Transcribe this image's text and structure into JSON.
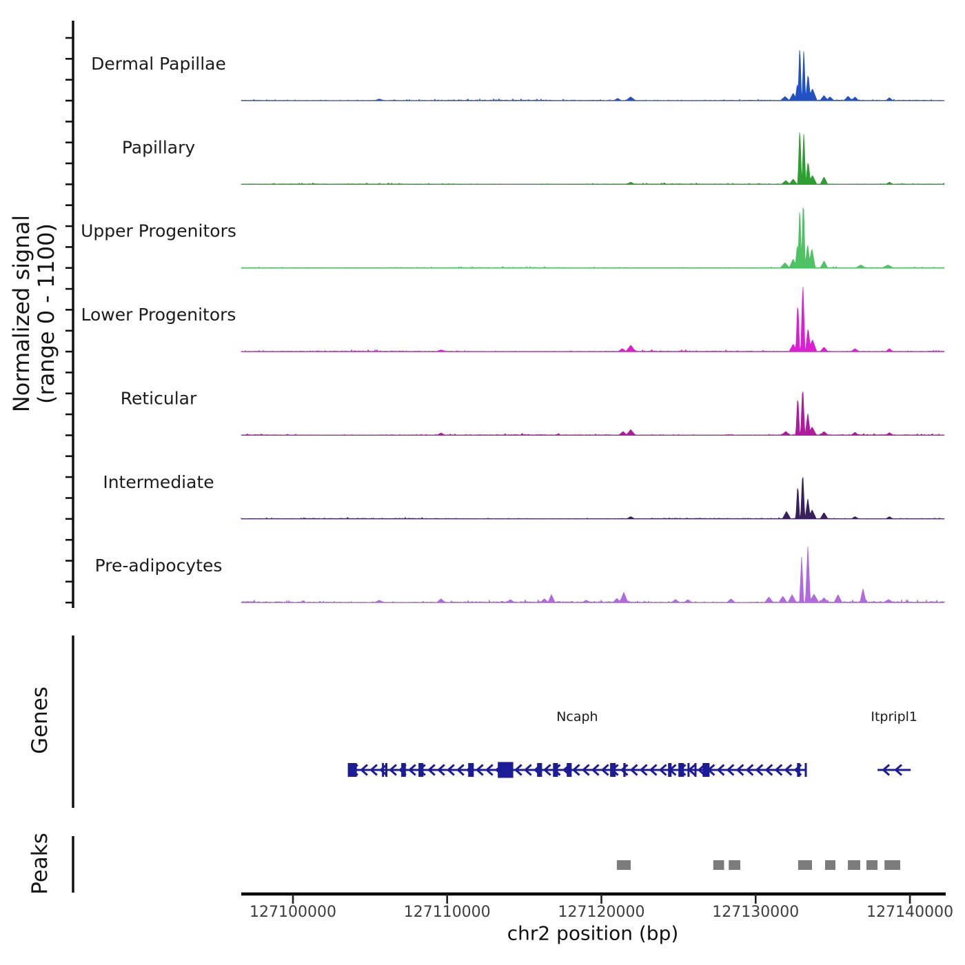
{
  "figure": {
    "y_axis_label_line1": "Normalized signal",
    "y_axis_label_line2": "(range 0 - 1100)",
    "genes_axis_label": "Genes",
    "peaks_axis_label": "Peaks",
    "x_axis_label": "chr2 position (bp)"
  },
  "chart_data": {
    "type": "area",
    "subtype": "genome-browser-signal-tracks",
    "chromosome": "chr2",
    "xlabel": "chr2 position (bp)",
    "ylabel": "Normalized signal (range 0 - 1100)",
    "x_range_bp": [
      127096650,
      127142230
    ],
    "x_ticks_bp": [
      127100000,
      127110000,
      127120000,
      127130000,
      127140000
    ],
    "y_range_per_track": [
      0,
      1100
    ],
    "axis_color": "#111111",
    "baseline_color": "#555555",
    "tick_label_color": "#3d3d3d",
    "series": [
      {
        "name": "Dermal Papillae",
        "color": "#2251c4",
        "noise_level": 13,
        "noise_seed": 1,
        "peaks_bp": [
          [
            127131900,
            55,
            300
          ],
          [
            127132430,
            100,
            260
          ],
          [
            127132700,
            230,
            140
          ],
          [
            127132860,
            760,
            120
          ],
          [
            127133120,
            690,
            120
          ],
          [
            127133400,
            360,
            170
          ],
          [
            127133680,
            160,
            300
          ],
          [
            127134430,
            70,
            260
          ],
          [
            127134820,
            50,
            260
          ],
          [
            127135990,
            60,
            260
          ],
          [
            127136440,
            50,
            230
          ],
          [
            127138670,
            40,
            230
          ],
          [
            127121900,
            50,
            320
          ],
          [
            127121050,
            30,
            260
          ],
          [
            127105600,
            22,
            320
          ]
        ]
      },
      {
        "name": "Papillary",
        "color": "#2e9e32",
        "noise_level": 10,
        "noise_seed": 2,
        "peaks_bp": [
          [
            127132430,
            70,
            260
          ],
          [
            127132860,
            770,
            130
          ],
          [
            127133120,
            700,
            130
          ],
          [
            127133400,
            310,
            170
          ],
          [
            127133680,
            120,
            280
          ],
          [
            127134430,
            100,
            240
          ],
          [
            127138670,
            30,
            230
          ],
          [
            127121900,
            28,
            280
          ],
          [
            127131950,
            50,
            280
          ]
        ]
      },
      {
        "name": "Upper Progenitors",
        "color": "#4fc264",
        "noise_level": 10,
        "noise_seed": 3,
        "peaks_bp": [
          [
            127131900,
            70,
            300
          ],
          [
            127132430,
            120,
            260
          ],
          [
            127132700,
            320,
            140
          ],
          [
            127132860,
            830,
            130
          ],
          [
            127133090,
            950,
            130
          ],
          [
            127133370,
            320,
            180
          ],
          [
            127133640,
            260,
            230
          ],
          [
            127134430,
            95,
            240
          ],
          [
            127136820,
            40,
            320
          ],
          [
            127138570,
            40,
            360
          ]
        ]
      },
      {
        "name": "Lower Progenitors",
        "color": "#dc1fd2",
        "noise_level": 13,
        "noise_seed": 4,
        "peaks_bp": [
          [
            127132430,
            100,
            260
          ],
          [
            127132730,
            680,
            130
          ],
          [
            127133060,
            920,
            140
          ],
          [
            127133400,
            320,
            180
          ],
          [
            127133680,
            160,
            280
          ],
          [
            127121900,
            85,
            320
          ],
          [
            127121350,
            40,
            260
          ],
          [
            127134430,
            60,
            260
          ],
          [
            127136440,
            40,
            260
          ],
          [
            127138670,
            40,
            240
          ],
          [
            127109600,
            22,
            320
          ]
        ]
      },
      {
        "name": "Reticular",
        "color": "#b01a9e",
        "noise_level": 12,
        "noise_seed": 5,
        "peaks_bp": [
          [
            127132730,
            540,
            130
          ],
          [
            127133050,
            670,
            140
          ],
          [
            127133380,
            290,
            180
          ],
          [
            127133660,
            110,
            280
          ],
          [
            127121900,
            75,
            300
          ],
          [
            127121400,
            50,
            270
          ],
          [
            127109600,
            30,
            270
          ],
          [
            127134430,
            50,
            260
          ],
          [
            127136440,
            40,
            240
          ],
          [
            127138670,
            35,
            240
          ],
          [
            127131950,
            50,
            290
          ]
        ]
      },
      {
        "name": "Intermediate",
        "color": "#3a1f5d",
        "noise_level": 11,
        "noise_seed": 6,
        "peaks_bp": [
          [
            127132000,
            100,
            270
          ],
          [
            127132730,
            470,
            130
          ],
          [
            127133050,
            640,
            140
          ],
          [
            127133380,
            270,
            180
          ],
          [
            127133660,
            120,
            270
          ],
          [
            127134430,
            85,
            250
          ],
          [
            127136440,
            30,
            240
          ],
          [
            127121900,
            30,
            260
          ],
          [
            127138670,
            30,
            230
          ]
        ]
      },
      {
        "name": "Pre-adipocytes",
        "color": "#b269e0",
        "noise_level": 20,
        "noise_seed": 7,
        "peaks_bp": [
          [
            127132980,
            605,
            140
          ],
          [
            127133385,
            755,
            160
          ],
          [
            127133780,
            110,
            320
          ],
          [
            127134430,
            65,
            270
          ],
          [
            127135340,
            105,
            260
          ],
          [
            127136960,
            185,
            200
          ],
          [
            127121450,
            135,
            270
          ],
          [
            127121000,
            55,
            260
          ],
          [
            127116760,
            105,
            230
          ],
          [
            127116300,
            50,
            270
          ],
          [
            127109600,
            50,
            270
          ],
          [
            127114100,
            40,
            270
          ],
          [
            127124800,
            40,
            270
          ],
          [
            127128400,
            50,
            270
          ],
          [
            127130860,
            75,
            270
          ],
          [
            127131760,
            85,
            270
          ],
          [
            127132360,
            105,
            270
          ],
          [
            127138610,
            40,
            320
          ],
          [
            127105600,
            30,
            320
          ],
          [
            127125610,
            38,
            270
          ],
          [
            127119010,
            32,
            270
          ]
        ]
      }
    ],
    "genes": {
      "label": "Genes",
      "color": "#1c1c96",
      "items": [
        {
          "name": "Ncaph",
          "strand": "-",
          "start_bp": 127103560,
          "end_bp": 127133300,
          "arrow_spacing_bp": 625,
          "exons_bp": [
            [
              127103560,
              580
            ],
            [
              127105770,
              120
            ],
            [
              127105990,
              120
            ],
            [
              127107020,
              300
            ],
            [
              127108140,
              320
            ],
            [
              127111360,
              360
            ],
            [
              127113280,
              1000,
              23
            ],
            [
              127115830,
              320
            ],
            [
              127116860,
              320
            ],
            [
              127117750,
              320
            ],
            [
              127120560,
              360
            ],
            [
              127121420,
              150
            ],
            [
              127124320,
              230
            ],
            [
              127124990,
              360
            ],
            [
              127125580,
              120
            ],
            [
              127126030,
              120
            ],
            [
              127126560,
              450
            ],
            [
              127132680,
              200
            ],
            [
              127133180,
              120
            ]
          ]
        },
        {
          "name": "Itpripl1",
          "strand": "-",
          "start_bp": 127137900,
          "end_bp": 127140050,
          "arrow_spacing_bp": 800,
          "exons_bp": []
        }
      ]
    },
    "peaks": {
      "label": "Peaks",
      "color": "#7c7c7c",
      "intervals_bp": [
        [
          127121000,
          127121900
        ],
        [
          127127250,
          127127950
        ],
        [
          127128250,
          127129000
        ],
        [
          127132750,
          127133650
        ],
        [
          127134500,
          127135170
        ],
        [
          127135980,
          127136780
        ],
        [
          127137180,
          127137900
        ],
        [
          127138350,
          127139370
        ]
      ]
    }
  }
}
